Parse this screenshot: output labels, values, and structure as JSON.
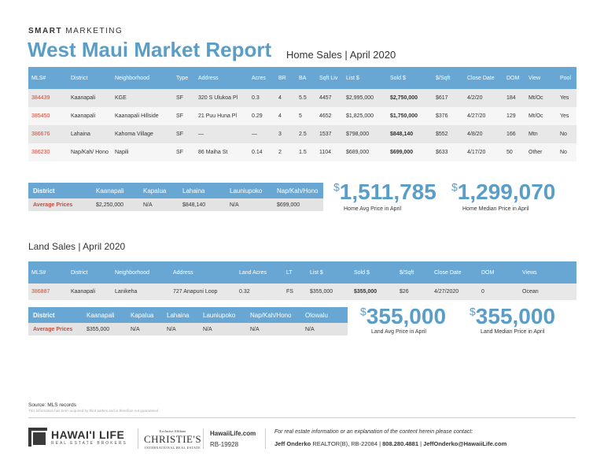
{
  "header": {
    "smart_bold": "SMART",
    "smart_rest": " MARKETING",
    "title": "West Maui Market Report",
    "subtitle": "Home Sales | April 2020"
  },
  "home_table": {
    "columns": [
      "MLS#",
      "District",
      "Neighborhood",
      "Type",
      "Address",
      "Acres",
      "BR",
      "BA",
      "Sqft Liv",
      "List $",
      "Sold $",
      "$/Sqft",
      "Close Date",
      "DOM",
      "View",
      "Pool"
    ],
    "rows": [
      [
        "384439",
        "Kaanapali",
        "KGE",
        "SF",
        "320 S Ulukoa Pl",
        "0.3",
        "4",
        "5.5",
        "4457",
        "$2,995,000",
        "$2,750,000",
        "$617",
        "4/2/20",
        "184",
        "Mt/Oc",
        "Yes"
      ],
      [
        "385450",
        "Kaanapali",
        "Kaanapali Hillside",
        "SF",
        "21 Puu Huna Pl",
        "0.29",
        "4",
        "5",
        "4652",
        "$1,825,000",
        "$1,750,000",
        "$376",
        "4/27/20",
        "129",
        "Mt/Oc",
        "Yes"
      ],
      [
        "386676",
        "Lahaina",
        "Kahoma Village",
        "SF",
        "—",
        "—",
        "3",
        "2.5",
        "1537",
        "$798,000",
        "$848,140",
        "$552",
        "4/8/20",
        "166",
        "Mtn",
        "No"
      ],
      [
        "386230",
        "Nap/Kah/ Hono",
        "Napili",
        "SF",
        "86 Maiha St",
        "0.14",
        "2",
        "1.5",
        "1104",
        "$689,000",
        "$699,000",
        "$633",
        "4/17/20",
        "50",
        "Other",
        "No"
      ]
    ]
  },
  "home_summary": {
    "columns": [
      "District",
      "Kaanapali",
      "Kapalua",
      "Lahaina",
      "Launiupoko",
      "Nap/Kah/Hono"
    ],
    "row": [
      "Average Prices",
      "$2,250,000",
      "N/A",
      "$848,140",
      "N/A",
      "$699,000"
    ]
  },
  "home_stats": {
    "avg_value": "1,511,785",
    "avg_label": "Home Avg Price in April",
    "median_value": "1,299,070",
    "median_label": "Home Median Price in April",
    "currency": "$"
  },
  "land_section_title": "Land Sales | April 2020",
  "land_table": {
    "columns": [
      "MLS#",
      "District",
      "Neighborhood",
      "Address",
      "Land Acres",
      "LT",
      "List $",
      "Sold $",
      "$/Sqft",
      "Close Date",
      "DOM",
      "Views"
    ],
    "rows": [
      [
        "386887",
        "Kaanapali",
        "Lanikeha",
        "727 Anapuni Loop",
        "0.32",
        "FS",
        "$355,000",
        "$355,000",
        "$26",
        "4/27/2020",
        "0",
        "Ocean"
      ]
    ]
  },
  "land_summary": {
    "columns": [
      "District",
      "Kaanapali",
      "Kapalua",
      "Lahaina",
      "Launiupoko",
      "Nap/Kah/Hono",
      "Olowalu"
    ],
    "row": [
      "Average Prices",
      "$355,000",
      "N/A",
      "N/A",
      "N/A",
      "N/A",
      "N/A"
    ]
  },
  "land_stats": {
    "avg_value": "355,000",
    "avg_label": "Land Avg Price in April",
    "median_value": "355,000",
    "median_label": "Land Median Price in April",
    "currency": "$"
  },
  "footer": {
    "source": "Source: MLS records",
    "disclaimer": "This information has been acquired by third parties and is therefore not guaranteed",
    "brand": "HAWAI'I LIFE",
    "brand_sub": "REAL ESTATE BROKERS",
    "christies_top": "Exclusive Affiliate",
    "christies": "CHRISTIE'S",
    "christies_sub": "INTERNATIONAL REAL ESTATE",
    "website": "HawaiiLife.com",
    "rb": "RB-19928",
    "info_line": "For real estate information or an explanation of the content herein please contact:",
    "agent": "Jeff Onderko",
    "agent_license": " REALTOR(B), RB-22084 | ",
    "phone": "808.280.4881",
    "sep": " | ",
    "email": "JeffOnderko@HawaiiLife.com"
  }
}
